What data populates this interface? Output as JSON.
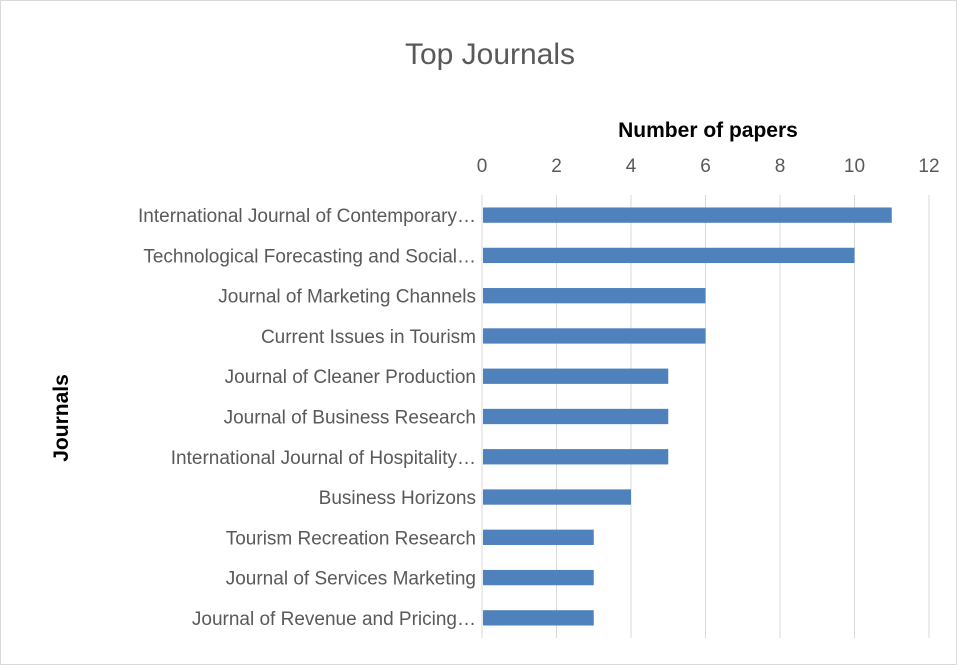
{
  "chart_data": {
    "type": "bar",
    "orientation": "horizontal",
    "title": "Top Journals",
    "xlabel": "Number of papers",
    "ylabel": "Journals",
    "x_axis_position": "top",
    "xlim": [
      0,
      12
    ],
    "xticks": [
      0,
      2,
      4,
      6,
      8,
      10,
      12
    ],
    "grid": true,
    "legend": "none",
    "color": "#4f81bd",
    "categories": [
      "International Journal of Contemporary…",
      "Technological Forecasting and Social…",
      "Journal of Marketing Channels",
      "Current Issues in Tourism",
      "Journal of Cleaner Production",
      "Journal of Business Research",
      "International Journal of Hospitality…",
      "Business Horizons",
      "Tourism Recreation Research",
      "Journal of Services Marketing",
      "Journal of Revenue and Pricing…"
    ],
    "values": [
      11,
      10,
      6,
      6,
      5,
      5,
      5,
      4,
      3,
      3,
      3
    ]
  }
}
